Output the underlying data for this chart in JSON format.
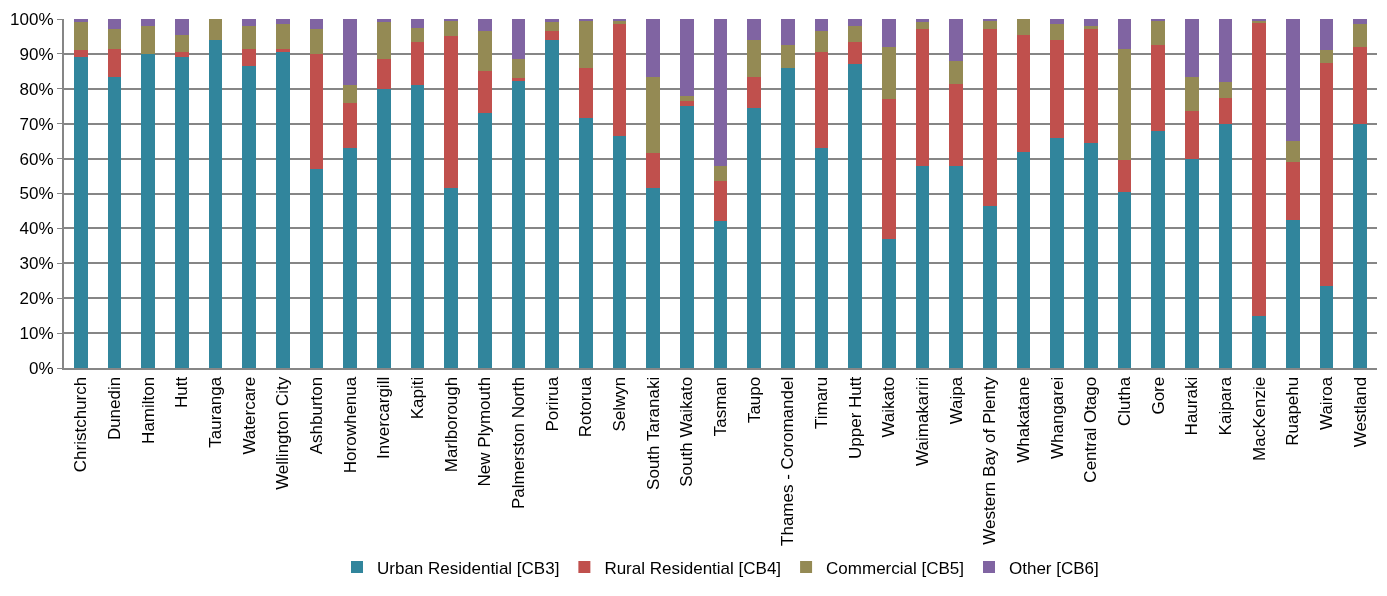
{
  "chart_data": {
    "type": "bar",
    "stacked": true,
    "categories": [
      "Christchurch",
      "Dunedin",
      "Hamilton",
      "Hutt",
      "Tauranga",
      "Watercare",
      "Wellington City",
      "Ashburton",
      "Horowhenua",
      "Invercargill",
      "Kapiti",
      "Marlborough",
      "New Plymouth",
      "Palmerston North",
      "Porirua",
      "Rotorua",
      "Selwyn",
      "South Taranaki",
      "South Waikato",
      "Tasman",
      "Taupo",
      "Thames - Coromandel",
      "Timaru",
      "Upper Hutt",
      "Waikato",
      "Waimakariri",
      "Waipa",
      "Western Bay of Plenty",
      "Whakatane",
      "Whangarei",
      "Central Otago",
      "Clutha",
      "Gore",
      "Hauraki",
      "Kaipara",
      "MacKenzie",
      "Ruapehu",
      "Wairoa",
      "Westland"
    ],
    "series": [
      {
        "name": "Urban Residential [CB3]",
        "color": "#31859c",
        "values": [
          89,
          83.5,
          90,
          89,
          94,
          86.5,
          90.5,
          57,
          63,
          80,
          81,
          51.5,
          73,
          82.5,
          94,
          71.5,
          66.5,
          51.5,
          75,
          42,
          74.5,
          86,
          63,
          87,
          37,
          58,
          58,
          46.5,
          62,
          66,
          64.5,
          50.5,
          68,
          60,
          70,
          15,
          42.5,
          23.5,
          70
        ]
      },
      {
        "name": "Rural Residential [CB4]",
        "color": "#c0504d",
        "values": [
          2,
          8,
          0,
          1.5,
          0,
          5,
          1,
          33,
          13,
          8.5,
          12.5,
          43.5,
          12,
          0.5,
          2.5,
          14.5,
          32,
          10,
          1.5,
          11.5,
          9,
          0,
          27.5,
          6.5,
          40,
          39,
          23.5,
          50.5,
          33.5,
          28,
          32.5,
          9,
          24.5,
          13.5,
          7.5,
          84,
          16.5,
          64,
          22
        ]
      },
      {
        "name": "Commercial [CB5]",
        "color": "#948a54",
        "values": [
          8,
          5.5,
          8,
          5,
          6,
          6.5,
          7,
          7,
          5,
          10.5,
          4,
          4.5,
          11.5,
          5.5,
          2.5,
          13.5,
          1,
          22,
          1.5,
          4.5,
          10.5,
          6.5,
          6,
          4.5,
          15,
          2,
          6.5,
          2.5,
          4.5,
          4.5,
          1,
          32,
          7,
          10,
          4.5,
          0.5,
          6,
          3.5,
          6.5
        ]
      },
      {
        "name": "Other [CB6]",
        "color": "#8064a2",
        "values": [
          1,
          3,
          2,
          4.5,
          0,
          2,
          1.5,
          3,
          19,
          1,
          2.5,
          0.5,
          3.5,
          11.5,
          1,
          0.5,
          0.5,
          16.5,
          22,
          42,
          6,
          7.5,
          3.5,
          2,
          8,
          1,
          12,
          0.5,
          0,
          1.5,
          2,
          8.5,
          0.5,
          16.5,
          18,
          0.5,
          35,
          9,
          1.5
        ]
      }
    ],
    "ylim": [
      0,
      100
    ],
    "yticks": [
      {
        "value": 0,
        "label": "0%"
      },
      {
        "value": 10,
        "label": "10%"
      },
      {
        "value": 20,
        "label": "20%"
      },
      {
        "value": 30,
        "label": "30%"
      },
      {
        "value": 40,
        "label": "40%"
      },
      {
        "value": 50,
        "label": "50%"
      },
      {
        "value": 60,
        "label": "60%"
      },
      {
        "value": 70,
        "label": "70%"
      },
      {
        "value": 80,
        "label": "80%"
      },
      {
        "value": 90,
        "label": "90%"
      },
      {
        "value": 100,
        "label": "100%"
      }
    ],
    "grid": "y",
    "legend": "bottom"
  }
}
